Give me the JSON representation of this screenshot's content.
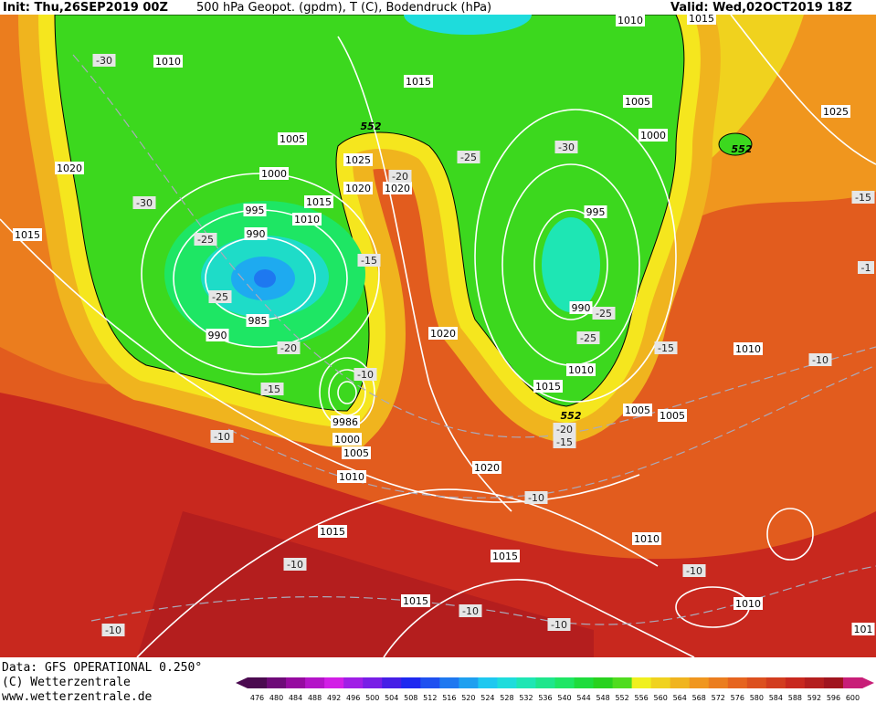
{
  "header": {
    "init": "Init: Thu,26SEP2019 00Z",
    "title": "500 hPa Geopot. (gpdm), T (C), Bodendruck (hPa)",
    "valid": "Valid: Wed,02OCT2019 18Z"
  },
  "footer": {
    "data": "Data: GFS OPERATIONAL 0.250°",
    "copyright": "(C) Wetterzentrale",
    "url": "www.wetterzentrale.de"
  },
  "legend": {
    "levels": [
      476,
      480,
      484,
      488,
      492,
      496,
      500,
      504,
      508,
      512,
      516,
      520,
      524,
      528,
      532,
      536,
      540,
      544,
      548,
      552,
      556,
      560,
      564,
      568,
      572,
      576,
      580,
      584,
      588,
      592,
      596,
      600
    ],
    "colors": [
      "#4b0a50",
      "#6e0a78",
      "#960aa0",
      "#b414c8",
      "#d21ee6",
      "#a01ee6",
      "#781ee6",
      "#461ee6",
      "#1e28f0",
      "#1e50f0",
      "#1e78f0",
      "#1ea0f0",
      "#1ec8f0",
      "#1edcdc",
      "#1ee6b4",
      "#1ee68c",
      "#1ee664",
      "#1edc3c",
      "#28d21e",
      "#50dc1e",
      "#f0f01e",
      "#f0d21e",
      "#f0b41e",
      "#f0961e",
      "#eb7d1e",
      "#e6641e",
      "#dc501e",
      "#d23c1e",
      "#c8281e",
      "#b41e1e",
      "#a0141e",
      "#c81e78"
    ]
  },
  "map": {
    "pressure_labels": [
      "1010",
      "1015",
      "1005",
      "1025",
      "1000",
      "1020",
      "1020",
      "1015",
      "1020",
      "995",
      "1010",
      "990",
      "1015",
      "985",
      "990",
      "1020",
      "1005",
      "1000",
      "995",
      "990",
      "1010",
      "1015",
      "1005",
      "1005",
      "1010",
      "1025",
      "1000",
      "1005",
      "1010",
      "1020",
      "1015",
      "1015",
      "1010",
      "1015",
      "1010",
      "1010",
      "1015",
      "101",
      "9986"
    ],
    "temperature_labels": [
      "-30",
      "-30",
      "-25",
      "-25",
      "-20",
      "-15",
      "-10",
      "-20",
      "-15",
      "-25",
      "-30",
      "-25",
      "-25",
      "-15",
      "-10",
      "-15",
      "-10",
      "-20",
      "-15",
      "-10",
      "-10",
      "-10",
      "-10",
      "-10",
      "-10",
      "-1"
    ],
    "height_labels": [
      "552",
      "552",
      "552"
    ]
  }
}
